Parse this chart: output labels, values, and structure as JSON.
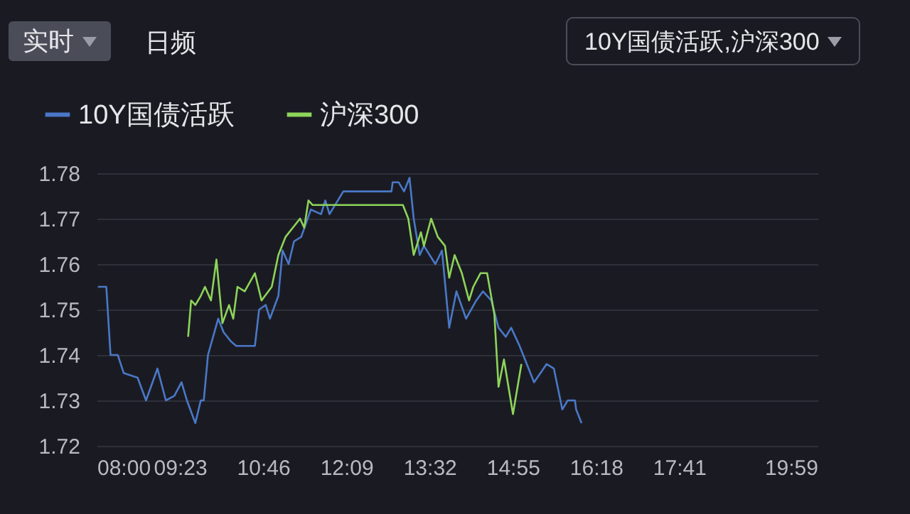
{
  "chart_data": {
    "type": "line",
    "annotations": [
      "实时",
      "日频",
      "10Y国债活跃,沪深300"
    ],
    "xlim": [
      8,
      19.9833
    ],
    "xticks": [
      {
        "value": 8,
        "label": "08:00"
      },
      {
        "value": 9.3833,
        "label": "09:23"
      },
      {
        "value": 10.7667,
        "label": "10:46"
      },
      {
        "value": 12.15,
        "label": "12:09"
      },
      {
        "value": 13.5333,
        "label": "13:32"
      },
      {
        "value": 14.9167,
        "label": "14:55"
      },
      {
        "value": 16.3,
        "label": "16:18"
      },
      {
        "value": 17.6833,
        "label": "17:41"
      },
      {
        "value": 19.9833,
        "label": "19:59"
      }
    ],
    "ylim": [
      1.72,
      1.78
    ],
    "yticks": [
      1.72,
      1.73,
      1.74,
      1.75,
      1.76,
      1.77,
      1.78
    ],
    "grid": "y",
    "legend": "top left",
    "line_style": "solid",
    "series": [
      {
        "name": "10Y国债活跃",
        "color": "#4a78c8",
        "x": [
          8.02,
          8.16,
          8.23,
          8.35,
          8.45,
          8.68,
          8.82,
          9.01,
          9.15,
          9.29,
          9.41,
          9.5,
          9.64,
          9.73,
          9.78,
          9.85,
          10.02,
          10.11,
          10.23,
          10.32,
          10.63,
          10.7,
          10.81,
          10.88,
          11.02,
          11.09,
          11.19,
          11.28,
          11.4,
          11.56,
          11.73,
          11.8,
          11.87,
          12.1,
          12.9,
          12.92,
          13.02,
          13.11,
          13.2,
          13.27,
          13.37,
          13.44,
          13.63,
          13.74,
          13.86,
          13.98,
          14.14,
          14.31,
          14.42,
          14.56,
          14.68,
          14.8,
          14.89,
          15.03,
          15.27,
          15.48,
          15.6,
          15.74,
          15.83,
          15.95,
          15.97,
          16.06
        ],
        "values": [
          1.755,
          1.755,
          1.74,
          1.74,
          1.736,
          1.735,
          1.73,
          1.737,
          1.73,
          1.731,
          1.734,
          1.73,
          1.725,
          1.73,
          1.73,
          1.74,
          1.748,
          1.745,
          1.743,
          1.742,
          1.742,
          1.75,
          1.751,
          1.748,
          1.753,
          1.763,
          1.76,
          1.765,
          1.766,
          1.772,
          1.771,
          1.774,
          1.771,
          1.776,
          1.776,
          1.778,
          1.778,
          1.776,
          1.779,
          1.77,
          1.762,
          1.764,
          1.76,
          1.763,
          1.746,
          1.754,
          1.748,
          1.752,
          1.754,
          1.752,
          1.746,
          1.744,
          1.746,
          1.742,
          1.734,
          1.738,
          1.737,
          1.728,
          1.73,
          1.73,
          1.728,
          1.725
        ]
      },
      {
        "name": "沪深300",
        "color": "#8ed45a",
        "x": [
          9.52,
          9.57,
          9.64,
          9.73,
          9.8,
          9.9,
          9.99,
          10.09,
          10.2,
          10.27,
          10.34,
          10.46,
          10.63,
          10.74,
          10.91,
          11.02,
          11.14,
          11.26,
          11.38,
          11.45,
          11.52,
          11.59,
          13.09,
          13.18,
          13.27,
          13.39,
          13.44,
          13.56,
          13.67,
          13.79,
          13.86,
          13.95,
          14.07,
          14.19,
          14.26,
          14.38,
          14.49,
          14.61,
          14.68,
          14.77,
          14.92,
          15.06
        ],
        "values": [
          1.744,
          1.752,
          1.751,
          1.753,
          1.755,
          1.752,
          1.761,
          1.747,
          1.751,
          1.748,
          1.755,
          1.754,
          1.758,
          1.752,
          1.755,
          1.762,
          1.766,
          1.768,
          1.77,
          1.768,
          1.774,
          1.773,
          1.773,
          1.77,
          1.762,
          1.767,
          1.764,
          1.77,
          1.766,
          1.764,
          1.757,
          1.762,
          1.758,
          1.752,
          1.755,
          1.758,
          1.758,
          1.749,
          1.733,
          1.739,
          1.727,
          1.738
        ]
      }
    ]
  }
}
